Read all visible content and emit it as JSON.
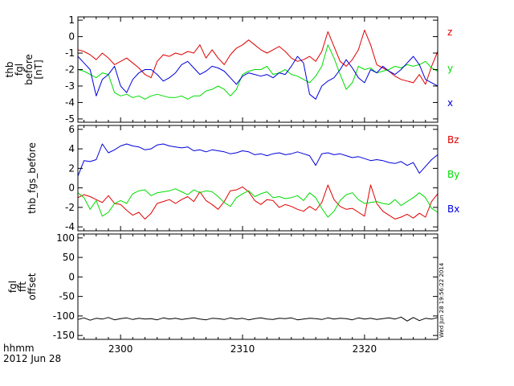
{
  "footer": {
    "time_unit": "hhmm",
    "date": "2012 Jun 28"
  },
  "stamp": "Wed Jun 28 19:56:22 2014",
  "colors": {
    "red": "#e00000",
    "green": "#00dd00",
    "blue": "#0000dd",
    "black": "#000000"
  },
  "chart_data": [
    {
      "type": "line",
      "ylabel_lines": [
        "thb",
        "fgl",
        "before",
        "[nT]"
      ],
      "xlim": [
        2296.5,
        2326
      ],
      "ylim": [
        -5.2,
        1.2
      ],
      "yticks": [
        1,
        0,
        -1,
        -2,
        -3,
        -4,
        -5
      ],
      "series": [
        {
          "name": "z",
          "color": "#e00000",
          "x": [
            2296.5,
            2297,
            2297.5,
            2298,
            2298.5,
            2299,
            2299.5,
            2300,
            2300.5,
            2301,
            2301.5,
            2302,
            2302.5,
            2303,
            2303.5,
            2304,
            2304.5,
            2305,
            2305.5,
            2306,
            2306.5,
            2307,
            2307.5,
            2308,
            2308.5,
            2309,
            2309.5,
            2310,
            2310.5,
            2311,
            2311.5,
            2312,
            2312.5,
            2313,
            2313.5,
            2314,
            2314.5,
            2315,
            2315.5,
            2316,
            2316.5,
            2317,
            2317.5,
            2318,
            2318.5,
            2319,
            2319.5,
            2320,
            2320.5,
            2321,
            2321.5,
            2322,
            2322.5,
            2323,
            2323.5,
            2324,
            2324.5,
            2325,
            2325.5,
            2326
          ],
          "y": [
            -0.8,
            -0.9,
            -1.1,
            -1.4,
            -1.0,
            -1.3,
            -1.7,
            -1.5,
            -1.3,
            -1.6,
            -1.9,
            -2.3,
            -2.5,
            -1.5,
            -1.1,
            -1.2,
            -1.0,
            -1.1,
            -0.9,
            -1.0,
            -0.5,
            -1.3,
            -0.8,
            -1.3,
            -1.7,
            -1.1,
            -0.7,
            -0.5,
            -0.2,
            -0.5,
            -0.8,
            -1.0,
            -0.8,
            -0.6,
            -0.9,
            -1.3,
            -1.5,
            -1.4,
            -1.2,
            -1.5,
            -0.9,
            0.3,
            -0.6,
            -1.5,
            -1.8,
            -1.4,
            -0.8,
            0.4,
            -0.5,
            -1.7,
            -1.9,
            -2.1,
            -2.4,
            -2.6,
            -2.7,
            -2.8,
            -2.3,
            -2.9,
            -1.8,
            -0.9
          ]
        },
        {
          "name": "y",
          "color": "#00dd00",
          "x": [
            2296.5,
            2297,
            2297.5,
            2298,
            2298.5,
            2299,
            2299.5,
            2300,
            2300.5,
            2301,
            2301.5,
            2302,
            2302.5,
            2303,
            2303.5,
            2304,
            2304.5,
            2305,
            2305.5,
            2306,
            2306.5,
            2307,
            2307.5,
            2308,
            2308.5,
            2309,
            2309.5,
            2310,
            2310.5,
            2311,
            2311.5,
            2312,
            2312.5,
            2313,
            2313.5,
            2314,
            2314.5,
            2315,
            2315.5,
            2316,
            2316.5,
            2317,
            2317.5,
            2318,
            2318.5,
            2319,
            2319.5,
            2320,
            2320.5,
            2321,
            2321.5,
            2322,
            2322.5,
            2323,
            2323.5,
            2324,
            2324.5,
            2325,
            2325.5,
            2326
          ],
          "y": [
            -2.0,
            -2.1,
            -2.3,
            -2.5,
            -2.2,
            -2.3,
            -3.4,
            -3.6,
            -3.5,
            -3.7,
            -3.6,
            -3.8,
            -3.6,
            -3.5,
            -3.6,
            -3.7,
            -3.7,
            -3.6,
            -3.8,
            -3.6,
            -3.6,
            -3.3,
            -3.2,
            -3.0,
            -3.2,
            -3.6,
            -3.2,
            -2.3,
            -2.1,
            -2.0,
            -2.0,
            -1.8,
            -2.3,
            -2.2,
            -2.0,
            -2.3,
            -2.4,
            -2.6,
            -2.8,
            -2.4,
            -1.8,
            -0.5,
            -1.3,
            -2.3,
            -3.2,
            -2.8,
            -1.8,
            -2.0,
            -1.9,
            -2.2,
            -2.1,
            -2.0,
            -1.8,
            -1.9,
            -1.7,
            -1.8,
            -1.7,
            -1.5,
            -1.9,
            -2.1
          ]
        },
        {
          "name": "x",
          "color": "#0000dd",
          "x": [
            2296.5,
            2297,
            2297.5,
            2298,
            2298.5,
            2299,
            2299.5,
            2300,
            2300.5,
            2301,
            2301.5,
            2302,
            2302.5,
            2303,
            2303.5,
            2304,
            2304.5,
            2305,
            2305.5,
            2306,
            2306.5,
            2307,
            2307.5,
            2308,
            2308.5,
            2309,
            2309.5,
            2310,
            2310.5,
            2311,
            2311.5,
            2312,
            2312.5,
            2313,
            2313.5,
            2314,
            2314.5,
            2315,
            2315.5,
            2316,
            2316.5,
            2317,
            2317.5,
            2318,
            2318.5,
            2319,
            2319.5,
            2320,
            2320.5,
            2321,
            2321.5,
            2322,
            2322.5,
            2323,
            2323.5,
            2324,
            2324.5,
            2325,
            2325.5,
            2326
          ],
          "y": [
            -1.2,
            -1.6,
            -2.0,
            -3.6,
            -2.6,
            -2.3,
            -1.8,
            -3.0,
            -3.4,
            -2.6,
            -2.2,
            -2.0,
            -2.0,
            -2.3,
            -2.7,
            -2.5,
            -2.2,
            -1.7,
            -1.5,
            -1.9,
            -2.3,
            -2.1,
            -1.8,
            -1.9,
            -2.1,
            -2.5,
            -2.9,
            -2.4,
            -2.2,
            -2.3,
            -2.4,
            -2.3,
            -2.5,
            -2.2,
            -2.3,
            -1.8,
            -1.2,
            -1.6,
            -3.5,
            -3.8,
            -3.0,
            -2.7,
            -2.5,
            -2.0,
            -1.4,
            -1.9,
            -2.5,
            -2.8,
            -2.0,
            -2.2,
            -1.8,
            -2.1,
            -2.3,
            -2.0,
            -1.6,
            -1.2,
            -1.7,
            -2.6,
            -2.8,
            -3.0
          ]
        }
      ]
    },
    {
      "type": "line",
      "ylabel_lines": [
        "thb_fgs_before"
      ],
      "xlim": [
        2296.5,
        2326
      ],
      "ylim": [
        -4.4,
        6.4
      ],
      "yticks": [
        6,
        4,
        2,
        0,
        -2,
        -4
      ],
      "series": [
        {
          "name": "Bz",
          "color": "#e00000",
          "x": [
            2296.5,
            2297,
            2297.5,
            2298,
            2298.5,
            2299,
            2299.5,
            2300,
            2300.5,
            2301,
            2301.5,
            2302,
            2302.5,
            2303,
            2303.5,
            2304,
            2304.5,
            2305,
            2305.5,
            2306,
            2306.5,
            2307,
            2307.5,
            2308,
            2308.5,
            2309,
            2309.5,
            2310,
            2310.5,
            2311,
            2311.5,
            2312,
            2312.5,
            2313,
            2313.5,
            2314,
            2314.5,
            2315,
            2315.5,
            2316,
            2316.5,
            2317,
            2317.5,
            2318,
            2318.5,
            2319,
            2319.5,
            2320,
            2320.5,
            2321,
            2321.5,
            2322,
            2322.5,
            2323,
            2323.5,
            2324,
            2324.5,
            2325,
            2325.5,
            2326
          ],
          "y": [
            -1.0,
            -0.7,
            -0.9,
            -1.2,
            -1.5,
            -0.8,
            -1.6,
            -1.7,
            -2.3,
            -2.8,
            -2.5,
            -3.2,
            -2.6,
            -1.6,
            -1.4,
            -1.2,
            -1.6,
            -1.2,
            -0.9,
            -1.4,
            -0.4,
            -1.3,
            -1.7,
            -2.2,
            -1.4,
            -0.3,
            -0.2,
            0.1,
            -0.4,
            -1.3,
            -1.7,
            -1.2,
            -1.3,
            -2.0,
            -1.7,
            -1.9,
            -2.2,
            -2.4,
            -1.9,
            -2.3,
            -1.5,
            0.3,
            -1.2,
            -1.9,
            -2.2,
            -2.1,
            -2.5,
            -2.9,
            0.3,
            -1.6,
            -2.4,
            -2.8,
            -3.2,
            -3.0,
            -2.7,
            -3.1,
            -2.6,
            -3.0,
            -1.4,
            -0.6
          ]
        },
        {
          "name": "By",
          "color": "#00dd00",
          "x": [
            2296.5,
            2297,
            2297.5,
            2298,
            2298.5,
            2299,
            2299.5,
            2300,
            2300.5,
            2301,
            2301.5,
            2302,
            2302.5,
            2303,
            2303.5,
            2304,
            2304.5,
            2305,
            2305.5,
            2306,
            2306.5,
            2307,
            2307.5,
            2308,
            2308.5,
            2309,
            2309.5,
            2310,
            2310.5,
            2311,
            2311.5,
            2312,
            2312.5,
            2313,
            2313.5,
            2314,
            2314.5,
            2315,
            2315.5,
            2316,
            2316.5,
            2317,
            2317.5,
            2318,
            2318.5,
            2319,
            2319.5,
            2320,
            2320.5,
            2321,
            2321.5,
            2322,
            2322.5,
            2323,
            2323.5,
            2324,
            2324.5,
            2325,
            2325.5,
            2326
          ],
          "y": [
            -0.5,
            -1.0,
            -2.2,
            -1.3,
            -2.9,
            -2.5,
            -1.6,
            -1.3,
            -1.6,
            -0.6,
            -0.3,
            -0.2,
            -0.8,
            -0.5,
            -0.4,
            -0.3,
            -0.1,
            -0.4,
            -0.7,
            -0.2,
            -0.5,
            -0.3,
            -0.4,
            -0.9,
            -1.5,
            -1.9,
            -1.0,
            -0.6,
            -0.3,
            -0.9,
            -0.6,
            -0.4,
            -1.0,
            -0.9,
            -1.1,
            -1.0,
            -0.8,
            -1.3,
            -0.5,
            -1.0,
            -2.1,
            -3.0,
            -2.4,
            -1.3,
            -0.7,
            -0.5,
            -1.2,
            -1.6,
            -1.5,
            -1.4,
            -1.6,
            -1.7,
            -1.2,
            -1.8,
            -1.4,
            -1.0,
            -0.5,
            -1.0,
            -2.1,
            -2.5
          ]
        },
        {
          "name": "Bx",
          "color": "#0000dd",
          "x": [
            2296.5,
            2297,
            2297.5,
            2298,
            2298.5,
            2299,
            2299.5,
            2300,
            2300.5,
            2301,
            2301.5,
            2302,
            2302.5,
            2303,
            2303.5,
            2304,
            2304.5,
            2305,
            2305.5,
            2306,
            2306.5,
            2307,
            2307.5,
            2308,
            2308.5,
            2309,
            2309.5,
            2310,
            2310.5,
            2311,
            2311.5,
            2312,
            2312.5,
            2313,
            2313.5,
            2314,
            2314.5,
            2315,
            2315.5,
            2316,
            2316.5,
            2317,
            2317.5,
            2318,
            2318.5,
            2319,
            2319.5,
            2320,
            2320.5,
            2321,
            2321.5,
            2322,
            2322.5,
            2323,
            2323.5,
            2324,
            2324.5,
            2325,
            2325.5,
            2326
          ],
          "y": [
            1.2,
            2.8,
            2.7,
            2.9,
            4.5,
            3.6,
            3.9,
            4.3,
            4.5,
            4.3,
            4.2,
            3.9,
            4.0,
            4.4,
            4.5,
            4.3,
            4.2,
            4.1,
            4.2,
            3.8,
            3.9,
            3.7,
            3.9,
            3.8,
            3.7,
            3.5,
            3.6,
            3.8,
            3.7,
            3.4,
            3.5,
            3.3,
            3.5,
            3.6,
            3.4,
            3.5,
            3.7,
            3.5,
            3.3,
            2.3,
            3.5,
            3.6,
            3.4,
            3.5,
            3.3,
            3.1,
            3.2,
            3.0,
            2.8,
            2.9,
            2.8,
            2.6,
            2.5,
            2.7,
            2.3,
            2.6,
            1.5,
            2.2,
            2.9,
            3.4
          ]
        }
      ]
    },
    {
      "type": "line",
      "ylabel_lines": [
        "fgl",
        "fft",
        "offset"
      ],
      "xlim": [
        2296.5,
        2326
      ],
      "ylim": [
        -160,
        110
      ],
      "yticks": [
        100,
        50,
        0,
        -50,
        -100,
        -150
      ],
      "xticks": [
        2300,
        2310,
        2320
      ],
      "series": [
        {
          "color": "#000000",
          "x": [
            2296.5,
            2297,
            2297.5,
            2298,
            2298.5,
            2299,
            2299.5,
            2300,
            2300.5,
            2301,
            2301.5,
            2302,
            2302.5,
            2303,
            2303.5,
            2304,
            2304.5,
            2305,
            2305.5,
            2306,
            2306.5,
            2307,
            2307.5,
            2308,
            2308.5,
            2309,
            2309.5,
            2310,
            2310.5,
            2311,
            2311.5,
            2312,
            2312.5,
            2313,
            2313.5,
            2314,
            2314.5,
            2315,
            2315.5,
            2316,
            2316.5,
            2317,
            2317.5,
            2318,
            2318.5,
            2319,
            2319.5,
            2320,
            2320.5,
            2321,
            2321.5,
            2322,
            2322.5,
            2323,
            2323.5,
            2324,
            2324.5,
            2325,
            2325.5,
            2326
          ],
          "y": [
            -109,
            -105,
            -111,
            -106,
            -108,
            -104,
            -110,
            -107,
            -105,
            -109,
            -106,
            -108,
            -107,
            -110,
            -105,
            -108,
            -106,
            -109,
            -107,
            -105,
            -108,
            -110,
            -106,
            -107,
            -109,
            -105,
            -108,
            -106,
            -110,
            -107,
            -105,
            -108,
            -109,
            -106,
            -107,
            -105,
            -110,
            -108,
            -106,
            -107,
            -109,
            -105,
            -108,
            -106,
            -107,
            -110,
            -105,
            -108,
            -106,
            -109,
            -107,
            -105,
            -108,
            -103,
            -113,
            -104,
            -112,
            -106,
            -108,
            -104
          ]
        }
      ]
    }
  ]
}
